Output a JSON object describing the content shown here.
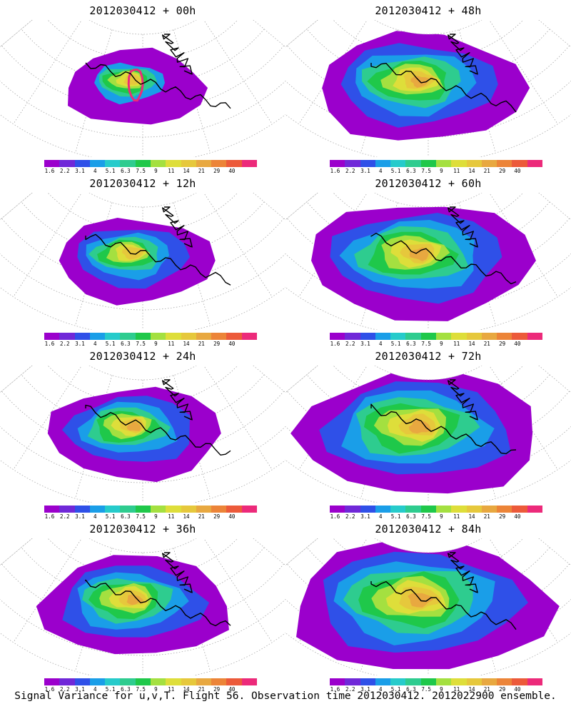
{
  "panels": [
    {
      "title": "2012030412 + 00h",
      "intensity": 0
    },
    {
      "title": "2012030412 + 48h",
      "intensity": 4
    },
    {
      "title": "2012030412 + 12h",
      "intensity": 1
    },
    {
      "title": "2012030412 + 60h",
      "intensity": 5
    },
    {
      "title": "2012030412 + 24h",
      "intensity": 2
    },
    {
      "title": "2012030412 + 72h",
      "intensity": 6
    },
    {
      "title": "2012030412 + 36h",
      "intensity": 3
    },
    {
      "title": "2012030412 + 84h",
      "intensity": 7
    }
  ],
  "colorbar": {
    "colors": [
      "#9b00cc",
      "#7028d8",
      "#2f50e8",
      "#1a9ee8",
      "#26cbcb",
      "#2ecc8f",
      "#1fc84a",
      "#a4e040",
      "#dede3a",
      "#e6c83c",
      "#e8a840",
      "#ec8438",
      "#ec5a3a",
      "#ec2a7a"
    ],
    "tick_labels": [
      "1.6",
      "2.2",
      "3.1",
      "4",
      "5.1",
      "6.3",
      "7.5",
      "9",
      "11",
      "14",
      "21",
      "29",
      "40"
    ]
  },
  "footer": "Signal Variance for u,v,T. Flight 56. Observation time 2012030412. 2012022900 ensemble."
}
